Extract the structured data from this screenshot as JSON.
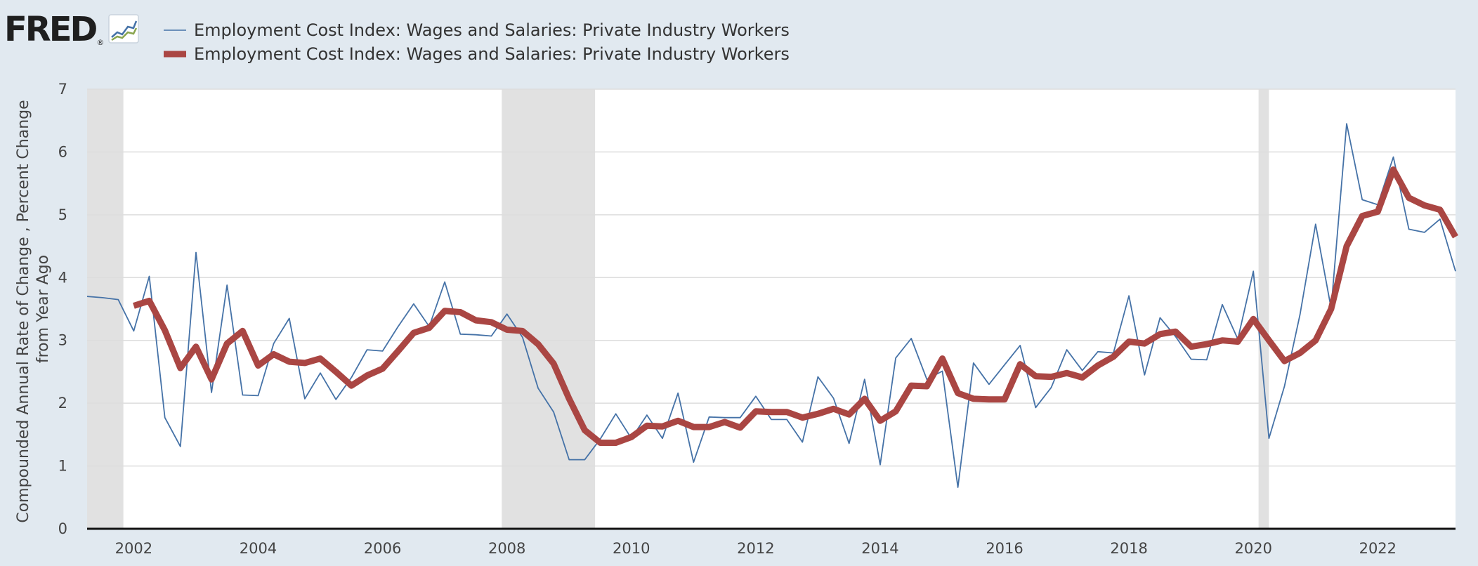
{
  "header": {
    "logo_text": "FRED",
    "logo_reg": "®",
    "logo_icon": "fred-trend-chart-icon"
  },
  "colors": {
    "background": "#e1e9f0",
    "plot_background": "#ffffff",
    "recession_shade": "#e1e1e1",
    "gridline": "#dddddd",
    "series_1": "#4572a7",
    "series_2": "#aa4643"
  },
  "chart_data": {
    "type": "line",
    "xlim": [
      "2001-04-01",
      "2023-04-01"
    ],
    "ylim": [
      0,
      7
    ],
    "grid": true,
    "legend_position": "top-left",
    "ylabel_lines": [
      "Compounded Annual Rate of Change , Percent Change",
      "from Year Ago"
    ],
    "x_ticks": [
      "2002",
      "2004",
      "2006",
      "2008",
      "2010",
      "2012",
      "2014",
      "2016",
      "2018",
      "2020",
      "2022"
    ],
    "y_ticks": [
      "0",
      "1",
      "2",
      "3",
      "4",
      "5",
      "6",
      "7"
    ],
    "recessions": [
      {
        "start": "2001-04-01",
        "end": "2001-11-01"
      },
      {
        "start": "2007-12-01",
        "end": "2009-06-01"
      },
      {
        "start": "2020-02-01",
        "end": "2020-04-01"
      }
    ],
    "series": [
      {
        "name": "Employment Cost Index: Wages and Salaries: Private Industry Workers",
        "x": [
          "2001-04-01",
          "2001-07-01",
          "2001-10-01",
          "2002-01-01",
          "2002-04-01",
          "2002-07-01",
          "2002-10-01",
          "2003-01-01",
          "2003-04-01",
          "2003-07-01",
          "2003-10-01",
          "2004-01-01",
          "2004-04-01",
          "2004-07-01",
          "2004-10-01",
          "2005-01-01",
          "2005-04-01",
          "2005-07-01",
          "2005-10-01",
          "2006-01-01",
          "2006-04-01",
          "2006-07-01",
          "2006-10-01",
          "2007-01-01",
          "2007-04-01",
          "2007-07-01",
          "2007-10-01",
          "2008-01-01",
          "2008-04-01",
          "2008-07-01",
          "2008-10-01",
          "2009-01-01",
          "2009-04-01",
          "2009-07-01",
          "2009-10-01",
          "2010-01-01",
          "2010-04-01",
          "2010-07-01",
          "2010-10-01",
          "2011-01-01",
          "2011-04-01",
          "2011-07-01",
          "2011-10-01",
          "2012-01-01",
          "2012-04-01",
          "2012-07-01",
          "2012-10-01",
          "2013-01-01",
          "2013-04-01",
          "2013-07-01",
          "2013-10-01",
          "2014-01-01",
          "2014-04-01",
          "2014-07-01",
          "2014-10-01",
          "2015-01-01",
          "2015-04-01",
          "2015-07-01",
          "2015-10-01",
          "2016-01-01",
          "2016-04-01",
          "2016-07-01",
          "2016-10-01",
          "2017-01-01",
          "2017-04-01",
          "2017-07-01",
          "2017-10-01",
          "2018-01-01",
          "2018-04-01",
          "2018-07-01",
          "2018-10-01",
          "2019-01-01",
          "2019-04-01",
          "2019-07-01",
          "2019-10-01",
          "2020-01-01",
          "2020-04-01",
          "2020-07-01",
          "2020-10-01",
          "2021-01-01",
          "2021-04-01",
          "2021-07-01",
          "2021-10-01",
          "2022-01-01",
          "2022-04-01",
          "2022-07-01",
          "2022-10-01",
          "2023-01-01",
          "2023-04-01"
        ],
        "values": [
          3.7,
          3.68,
          3.65,
          3.15,
          4.02,
          1.77,
          1.31,
          4.4,
          2.17,
          3.88,
          2.13,
          2.12,
          2.95,
          3.35,
          2.07,
          2.48,
          2.06,
          2.41,
          2.85,
          2.83,
          3.22,
          3.58,
          3.22,
          3.93,
          3.1,
          3.09,
          3.07,
          3.42,
          3.05,
          2.24,
          1.86,
          1.1,
          1.1,
          1.43,
          1.83,
          1.44,
          1.81,
          1.44,
          2.16,
          1.06,
          1.78,
          1.77,
          1.77,
          2.11,
          1.74,
          1.74,
          1.38,
          2.42,
          2.08,
          1.36,
          2.38,
          1.02,
          2.72,
          3.03,
          2.38,
          2.51,
          0.66,
          2.64,
          2.3,
          2.61,
          2.92,
          1.93,
          2.25,
          2.85,
          2.52,
          2.82,
          2.8,
          3.71,
          2.45,
          3.36,
          3.06,
          2.7,
          2.69,
          3.57,
          3.02,
          4.1,
          1.44,
          2.27,
          3.41,
          4.85,
          3.51,
          6.45,
          5.24,
          5.16,
          5.92,
          4.77,
          4.72,
          4.93,
          4.1
        ]
      },
      {
        "name": "Employment Cost Index: Wages and Salaries: Private Industry Workers",
        "x": [
          "2002-01-01",
          "2002-04-01",
          "2002-07-01",
          "2002-10-01",
          "2003-01-01",
          "2003-04-01",
          "2003-07-01",
          "2003-10-01",
          "2004-01-01",
          "2004-04-01",
          "2004-07-01",
          "2004-10-01",
          "2005-01-01",
          "2005-04-01",
          "2005-07-01",
          "2005-10-01",
          "2006-01-01",
          "2006-04-01",
          "2006-07-01",
          "2006-10-01",
          "2007-01-01",
          "2007-04-01",
          "2007-07-01",
          "2007-10-01",
          "2008-01-01",
          "2008-04-01",
          "2008-07-01",
          "2008-10-01",
          "2009-01-01",
          "2009-04-01",
          "2009-07-01",
          "2009-10-01",
          "2010-01-01",
          "2010-04-01",
          "2010-07-01",
          "2010-10-01",
          "2011-01-01",
          "2011-04-01",
          "2011-07-01",
          "2011-10-01",
          "2012-01-01",
          "2012-04-01",
          "2012-07-01",
          "2012-10-01",
          "2013-01-01",
          "2013-04-01",
          "2013-07-01",
          "2013-10-01",
          "2014-01-01",
          "2014-04-01",
          "2014-07-01",
          "2014-10-01",
          "2015-01-01",
          "2015-04-01",
          "2015-07-01",
          "2015-10-01",
          "2016-01-01",
          "2016-04-01",
          "2016-07-01",
          "2016-10-01",
          "2017-01-01",
          "2017-04-01",
          "2017-07-01",
          "2017-10-01",
          "2018-01-01",
          "2018-04-01",
          "2018-07-01",
          "2018-10-01",
          "2019-01-01",
          "2019-04-01",
          "2019-07-01",
          "2019-10-01",
          "2020-01-01",
          "2020-04-01",
          "2020-07-01",
          "2020-10-01",
          "2021-01-01",
          "2021-04-01",
          "2021-07-01",
          "2021-10-01",
          "2022-01-01",
          "2022-04-01",
          "2022-07-01",
          "2022-10-01",
          "2023-01-01",
          "2023-04-01"
        ],
        "values": [
          3.55,
          3.63,
          3.16,
          2.56,
          2.9,
          2.38,
          2.95,
          3.15,
          2.6,
          2.78,
          2.66,
          2.64,
          2.71,
          2.5,
          2.28,
          2.44,
          2.55,
          2.83,
          3.12,
          3.2,
          3.47,
          3.45,
          3.32,
          3.29,
          3.17,
          3.15,
          2.94,
          2.63,
          2.07,
          1.57,
          1.37,
          1.37,
          1.46,
          1.64,
          1.63,
          1.72,
          1.62,
          1.62,
          1.7,
          1.61,
          1.87,
          1.86,
          1.86,
          1.77,
          1.83,
          1.91,
          1.82,
          2.07,
          1.72,
          1.87,
          2.28,
          2.27,
          2.71,
          2.16,
          2.07,
          2.06,
          2.06,
          2.62,
          2.43,
          2.42,
          2.48,
          2.41,
          2.6,
          2.74,
          2.98,
          2.95,
          3.1,
          3.14,
          2.9,
          2.94,
          3.0,
          2.98,
          3.34,
          3.0,
          2.67,
          2.8,
          3.0,
          3.5,
          4.5,
          4.98,
          5.05,
          5.72,
          5.27,
          5.15,
          5.08,
          4.65
        ]
      }
    ]
  }
}
